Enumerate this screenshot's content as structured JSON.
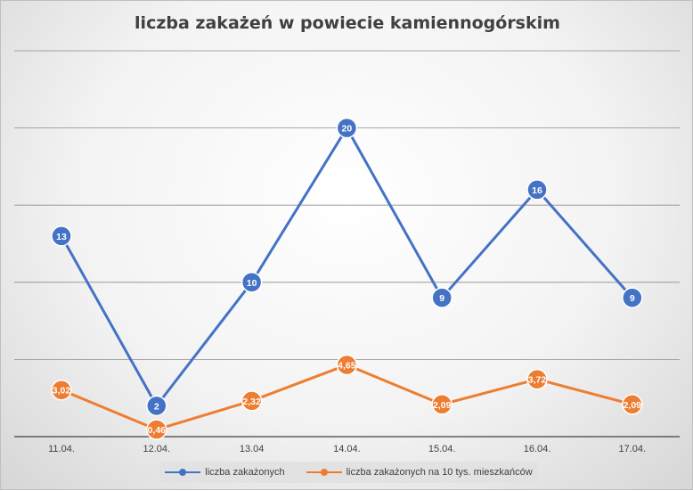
{
  "chart_data": {
    "type": "line",
    "title": "liczba zakażeń w powiecie kamiennogórskim",
    "categories": [
      "11.04.",
      "12.04.",
      "13.04",
      "14.04.",
      "15.04.",
      "16.04.",
      "17.04."
    ],
    "ylim": [
      0,
      25
    ],
    "grid": true,
    "legend_position": "bottom",
    "series": [
      {
        "name": "liczba zakażonych",
        "color": "#4472c4",
        "values": [
          13,
          2,
          10,
          20,
          9,
          16,
          9
        ],
        "labels": [
          "13",
          "2",
          "10",
          "20",
          "9",
          "16",
          "9"
        ]
      },
      {
        "name": "liczba zakażonych na 10 tys. mieszkańców",
        "color": "#ed7d31",
        "values": [
          3.02,
          0.46,
          2.32,
          4.65,
          2.09,
          3.72,
          2.09
        ],
        "labels": [
          "3,02",
          "0,46",
          "2,32",
          "4,65",
          "2,09",
          "3,72",
          "2,09"
        ]
      }
    ]
  }
}
